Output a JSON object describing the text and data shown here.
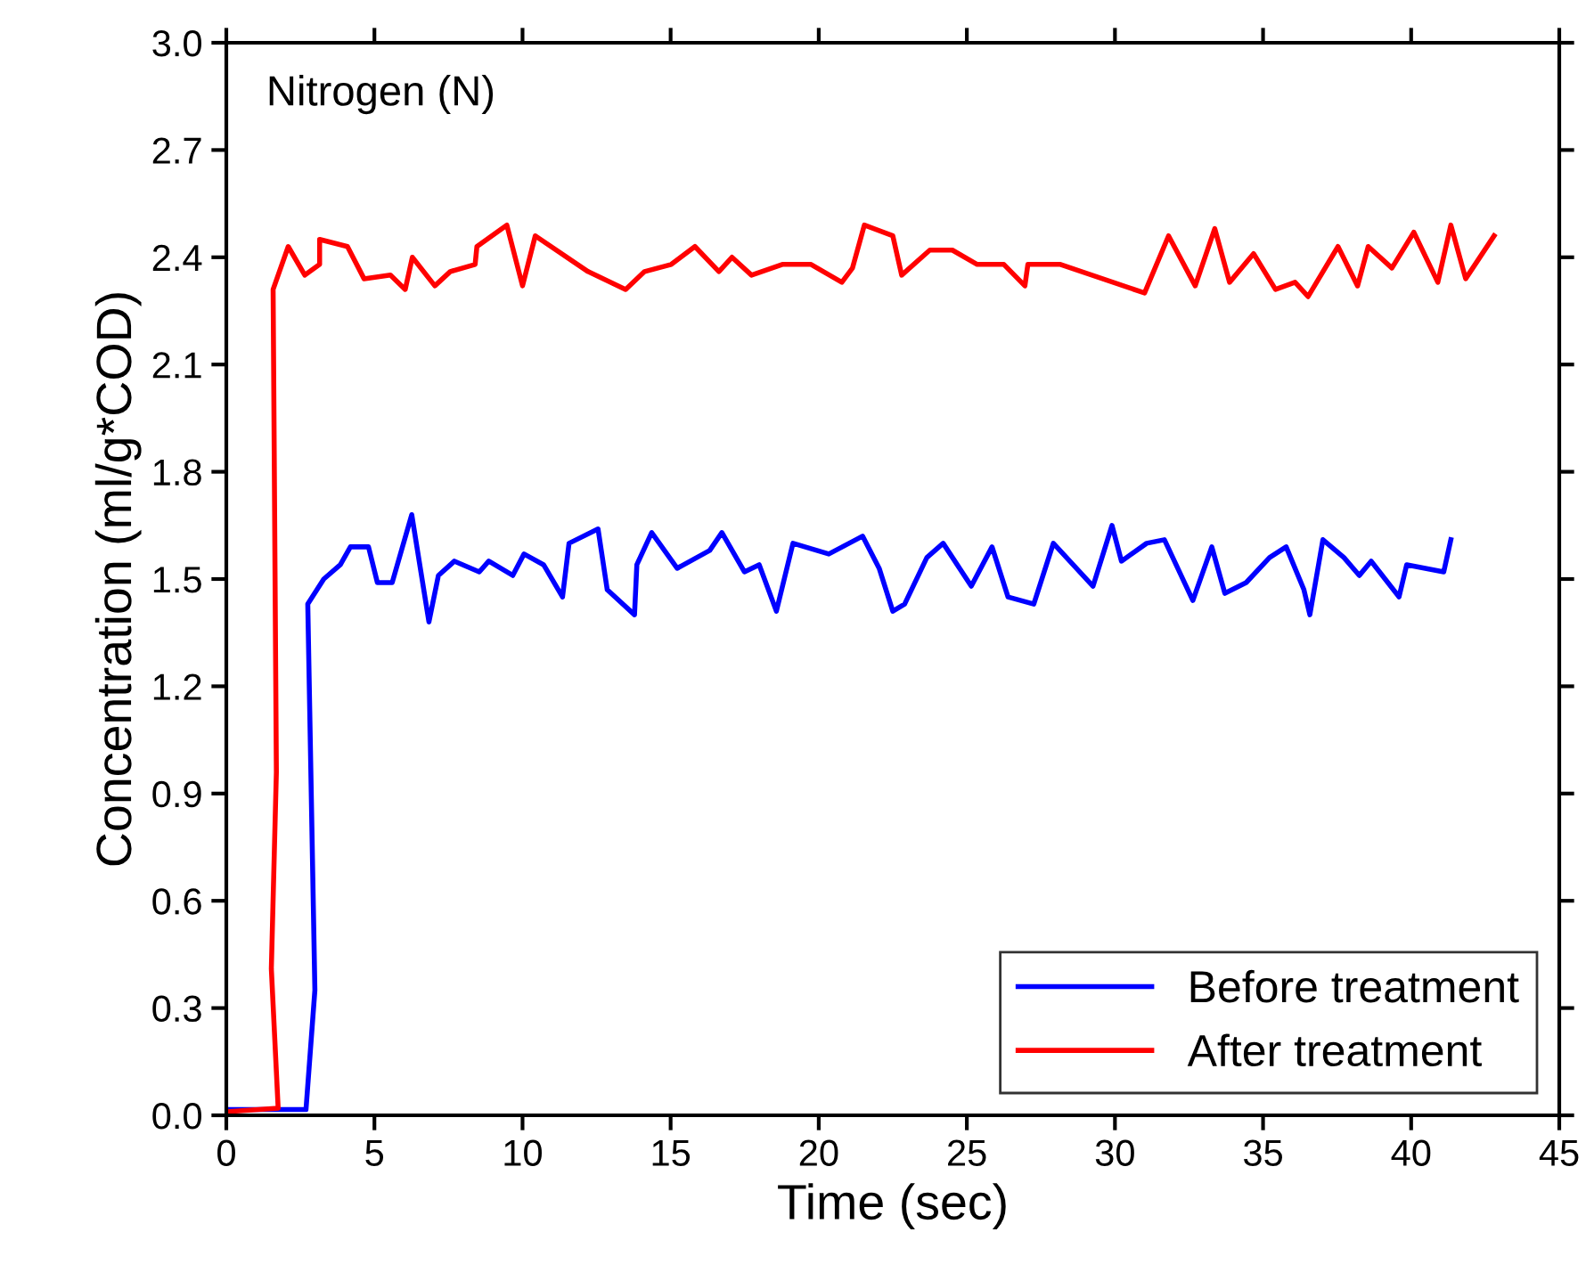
{
  "chart_data": {
    "type": "line",
    "xlabel": "Time (sec)",
    "ylabel": "Concentration (ml/g*COD)",
    "annotations": [
      "Nitrogen (N)"
    ],
    "xlim": [
      0,
      45
    ],
    "xticks": [
      0,
      5,
      10,
      15,
      20,
      25,
      30,
      35,
      40,
      45
    ],
    "ylim": [
      0,
      3.0
    ],
    "yticks": [
      {
        "value": 0,
        "label": "0.0"
      },
      0.3,
      0.6,
      0.9,
      1.2,
      1.5,
      1.8,
      2.1,
      2.4,
      2.7,
      {
        "value": 3,
        "label": "3.0"
      }
    ],
    "grid": false,
    "legend": "bottom right",
    "marker": "none",
    "line_style": "solid",
    "series": [
      {
        "name": "Before treatment",
        "color": "#0000ff",
        "x": [
          0.08,
          2.69,
          2.99,
          2.75,
          3.29,
          3.85,
          4.19,
          4.8,
          5.1,
          5.6,
          6.26,
          6.84,
          7.16,
          7.7,
          8.54,
          8.86,
          9.67,
          10.05,
          10.71,
          11.35,
          11.57,
          12.55,
          12.86,
          13.78,
          13.86,
          14.36,
          15.22,
          16.32,
          16.73,
          17.49,
          17.99,
          18.57,
          19.13,
          20.34,
          21.48,
          22.04,
          22.5,
          22.9,
          23.65,
          24.2,
          25.15,
          25.85,
          26.39,
          27.26,
          27.92,
          29.26,
          29.9,
          30.22,
          31.07,
          31.67,
          32.63,
          33.27,
          33.71,
          34.43,
          35.22,
          35.78,
          36.38,
          36.58,
          37.02,
          37.73,
          38.25,
          38.65,
          39.59,
          39.85,
          41.1,
          41.34
        ],
        "values": [
          0.016,
          0.016,
          0.35,
          1.43,
          1.5,
          1.54,
          1.59,
          1.59,
          1.49,
          1.49,
          1.68,
          1.38,
          1.51,
          1.55,
          1.52,
          1.55,
          1.51,
          1.57,
          1.54,
          1.45,
          1.6,
          1.64,
          1.47,
          1.4,
          1.54,
          1.63,
          1.53,
          1.58,
          1.63,
          1.52,
          1.54,
          1.41,
          1.6,
          1.57,
          1.62,
          1.53,
          1.41,
          1.43,
          1.56,
          1.6,
          1.48,
          1.59,
          1.45,
          1.43,
          1.6,
          1.48,
          1.65,
          1.55,
          1.6,
          1.61,
          1.44,
          1.59,
          1.46,
          1.49,
          1.56,
          1.59,
          1.47,
          1.4,
          1.61,
          1.56,
          1.51,
          1.55,
          1.45,
          1.54,
          1.52,
          1.61
        ]
      },
      {
        "name": "After treatment",
        "color": "#ff0000",
        "x": [
          0,
          1.75,
          1.52,
          1.69,
          1.58,
          2.09,
          2.65,
          3.15,
          3.15,
          4.09,
          4.65,
          5.54,
          6.04,
          6.28,
          7.04,
          7.56,
          8.4,
          8.46,
          9.47,
          10.0,
          10.43,
          12.21,
          13.48,
          14.12,
          15.02,
          15.82,
          16.63,
          17.07,
          17.73,
          18.77,
          19.74,
          20.78,
          21.14,
          21.54,
          22.5,
          22.8,
          23.75,
          24.51,
          25.35,
          26.25,
          26.96,
          27.06,
          28.16,
          31.0,
          31.81,
          32.71,
          33.37,
          33.87,
          34.68,
          35.42,
          36.08,
          36.52,
          37.53,
          38.19,
          38.55,
          39.35,
          40.09,
          40.9,
          41.34,
          41.84,
          42.8
        ],
        "values": [
          0.01,
          0.02,
          0.41,
          0.96,
          2.31,
          2.43,
          2.35,
          2.38,
          2.45,
          2.43,
          2.34,
          2.35,
          2.31,
          2.4,
          2.32,
          2.36,
          2.38,
          2.43,
          2.49,
          2.32,
          2.46,
          2.36,
          2.31,
          2.36,
          2.38,
          2.43,
          2.36,
          2.4,
          2.35,
          2.38,
          2.38,
          2.33,
          2.37,
          2.49,
          2.46,
          2.35,
          2.42,
          2.42,
          2.38,
          2.38,
          2.32,
          2.38,
          2.38,
          2.3,
          2.46,
          2.32,
          2.48,
          2.33,
          2.41,
          2.31,
          2.33,
          2.29,
          2.43,
          2.32,
          2.43,
          2.37,
          2.47,
          2.33,
          2.49,
          2.34,
          2.46
        ]
      }
    ]
  }
}
